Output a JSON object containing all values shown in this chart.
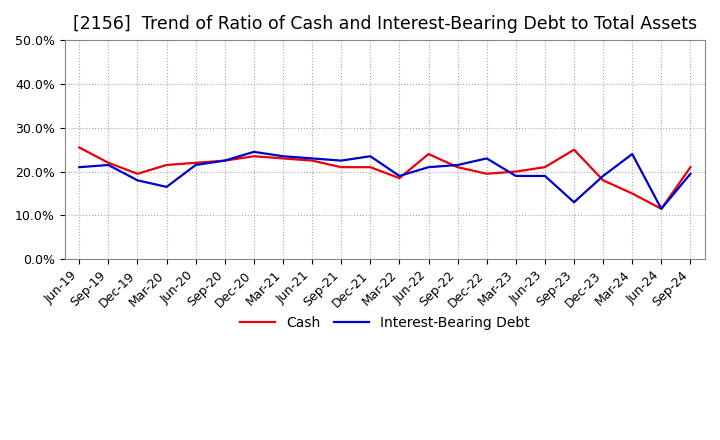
{
  "title": "[2156]  Trend of Ratio of Cash and Interest-Bearing Debt to Total Assets",
  "x_labels": [
    "Jun-19",
    "Sep-19",
    "Dec-19",
    "Mar-20",
    "Jun-20",
    "Sep-20",
    "Dec-20",
    "Mar-21",
    "Jun-21",
    "Sep-21",
    "Dec-21",
    "Mar-22",
    "Jun-22",
    "Sep-22",
    "Dec-22",
    "Mar-23",
    "Jun-23",
    "Sep-23",
    "Dec-23",
    "Mar-24",
    "Jun-24",
    "Sep-24"
  ],
  "cash": [
    25.5,
    22.0,
    19.5,
    21.5,
    22.0,
    22.5,
    23.5,
    23.0,
    22.5,
    21.0,
    21.0,
    18.5,
    24.0,
    21.0,
    19.5,
    20.0,
    21.0,
    25.0,
    18.0,
    15.0,
    11.5,
    21.0
  ],
  "ibd": [
    21.0,
    21.5,
    18.0,
    16.5,
    21.5,
    22.5,
    24.5,
    23.5,
    23.0,
    22.5,
    23.5,
    19.0,
    21.0,
    21.5,
    23.0,
    19.0,
    19.0,
    13.0,
    19.0,
    24.0,
    11.5,
    19.5
  ],
  "cash_color": "#e8000a",
  "ibd_color": "#0000cc",
  "ylim": [
    0,
    50
  ],
  "yticks": [
    0,
    10,
    20,
    30,
    40,
    50
  ],
  "background_color": "#ffffff",
  "plot_bg_color": "#ffffff",
  "grid_color": "#aaaaaa",
  "title_fontsize": 12.5,
  "tick_fontsize": 9,
  "legend_labels": [
    "Cash",
    "Interest-Bearing Debt"
  ]
}
